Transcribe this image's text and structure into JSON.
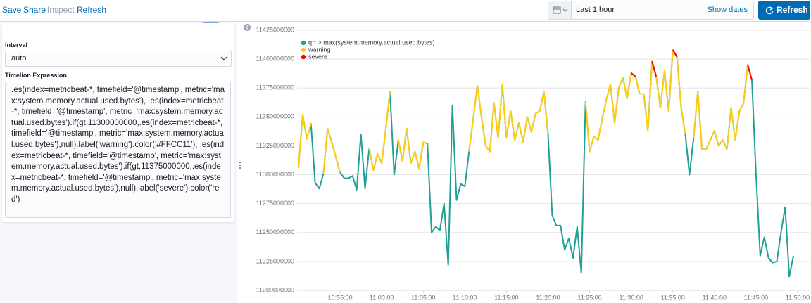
{
  "toolbar": {
    "links": [
      "Save",
      "Share",
      "Inspect",
      "Refresh"
    ]
  },
  "time_picker": {
    "range": "Last 1 hour",
    "show_dates": "Show dates",
    "button": "Refresh"
  },
  "editor": {
    "interval_label": "Interval",
    "interval_value": "auto",
    "expression_label": "Timelion Expression",
    "expression": ".es(index=metricbeat-*, timefield='@timestamp', metric='max:system.memory.actual.used.bytes'), .es(index=metricbeat-*, timefield='@timestamp', metric='max:system.memory.actual.used.bytes').if(gt,11300000000,.es(index=metricbeat-*, timefield='@timestamp', metric='max:system.memory.actual.used.bytes'),null).label('warning').color('#FFCC11'), .es(index=metricbeat-*, timefield='@timestamp', metric='max:system.memory.actual.used.bytes').if(gt,11375000000,.es(index=metricbeat-*, timefield='@timestamp', metric='max:system.memory.actual.used.bytes'),null).label('severe').color('red')"
  },
  "chart_data": {
    "type": "line",
    "grid": true,
    "legend": "top-left",
    "x": [
      "10:50:00",
      "10:50:30",
      "10:51:00",
      "10:51:30",
      "10:52:00",
      "10:52:30",
      "10:53:00",
      "10:53:30",
      "10:54:00",
      "10:54:30",
      "10:55:00",
      "10:55:30",
      "10:56:00",
      "10:56:30",
      "10:57:00",
      "10:57:30",
      "10:58:00",
      "10:58:30",
      "10:59:00",
      "10:59:30",
      "11:00:00",
      "11:00:30",
      "11:01:00",
      "11:01:30",
      "11:02:00",
      "11:02:30",
      "11:03:00",
      "11:03:30",
      "11:04:00",
      "11:04:30",
      "11:05:00",
      "11:05:30",
      "11:06:00",
      "11:06:30",
      "11:07:00",
      "11:07:30",
      "11:08:00",
      "11:08:30",
      "11:09:00",
      "11:09:30",
      "11:10:00",
      "11:10:30",
      "11:11:00",
      "11:11:30",
      "11:12:00",
      "11:12:30",
      "11:13:00",
      "11:13:30",
      "11:14:00",
      "11:14:30",
      "11:15:00",
      "11:15:30",
      "11:16:00",
      "11:16:30",
      "11:17:00",
      "11:17:30",
      "11:18:00",
      "11:18:30",
      "11:19:00",
      "11:19:30",
      "11:20:00",
      "11:20:30",
      "11:21:00",
      "11:21:30",
      "11:22:00",
      "11:22:30",
      "11:23:00",
      "11:23:30",
      "11:24:00",
      "11:24:30",
      "11:25:00",
      "11:25:30",
      "11:26:00",
      "11:26:30",
      "11:27:00",
      "11:27:30",
      "11:28:00",
      "11:28:30",
      "11:29:00",
      "11:29:30",
      "11:30:00",
      "11:30:30",
      "11:31:00",
      "11:31:30",
      "11:32:00",
      "11:32:30",
      "11:33:00",
      "11:33:30",
      "11:34:00",
      "11:34:30",
      "11:35:00",
      "11:35:30",
      "11:36:00",
      "11:36:30",
      "11:37:00",
      "11:37:30",
      "11:38:00",
      "11:38:30",
      "11:39:00",
      "11:39:30",
      "11:40:00",
      "11:40:30",
      "11:41:00",
      "11:41:30",
      "11:42:00",
      "11:42:30",
      "11:43:00",
      "11:43:30",
      "11:44:00",
      "11:44:30",
      "11:45:00",
      "11:45:30",
      "11:46:00",
      "11:46:30",
      "11:47:00",
      "11:47:30",
      "11:48:00",
      "11:48:30",
      "11:49:00",
      "11:49:30"
    ],
    "series": [
      {
        "name": "q:* > max(system.memory.actual.used.bytes)",
        "color": "#1fa097",
        "values": [
          11306000000,
          11352000000,
          11331000000,
          11344000000,
          11293000000,
          11288000000,
          11301000000,
          11340000000,
          11328000000,
          11315000000,
          11302000000,
          11297000000,
          11297000000,
          11299000000,
          11287000000,
          11335000000,
          11288000000,
          11323000000,
          11304000000,
          11318000000,
          11310000000,
          11340000000,
          11372000000,
          11300000000,
          11330000000,
          11312000000,
          11340000000,
          11310000000,
          11320000000,
          11305000000,
          11328000000,
          11327000000,
          11250000000,
          11255000000,
          11252000000,
          11275000000,
          11222000000,
          11360000000,
          11278000000,
          11292000000,
          11290000000,
          11320000000,
          11348000000,
          11377000000,
          11350000000,
          11325000000,
          11320000000,
          11362000000,
          11332000000,
          11378000000,
          11332000000,
          11355000000,
          11330000000,
          11345000000,
          11328000000,
          11350000000,
          11337000000,
          11353000000,
          11355000000,
          11372000000,
          11335000000,
          11265000000,
          11256000000,
          11256000000,
          11235000000,
          11245000000,
          11228000000,
          11255000000,
          11215000000,
          11363000000,
          11320000000,
          11333000000,
          11330000000,
          11348000000,
          11365000000,
          11378000000,
          11345000000,
          11375000000,
          11384000000,
          11366000000,
          11388000000,
          11385000000,
          11370000000,
          11370000000,
          11338000000,
          11398000000,
          11385000000,
          11358000000,
          11390000000,
          11355000000,
          11408000000,
          11402000000,
          11358000000,
          11335000000,
          11300000000,
          11332000000,
          11372000000,
          11322000000,
          11322000000,
          11330000000,
          11338000000,
          11325000000,
          11330000000,
          11322000000,
          11358000000,
          11330000000,
          11355000000,
          11362000000,
          11395000000,
          11382000000,
          11300000000,
          11230000000,
          11246000000,
          11228000000,
          11224000000,
          11225000000,
          11250000000,
          11272000000,
          11212000000,
          11230000000
        ]
      },
      {
        "name": "warning",
        "color": "#FFCC11",
        "values": [
          11306000000,
          11352000000,
          11331000000,
          11344000000,
          null,
          null,
          11301000000,
          11340000000,
          11328000000,
          11315000000,
          11302000000,
          null,
          null,
          null,
          null,
          11335000000,
          null,
          11323000000,
          11304000000,
          11318000000,
          11310000000,
          11340000000,
          11372000000,
          null,
          11330000000,
          11312000000,
          11340000000,
          11310000000,
          11320000000,
          11305000000,
          11328000000,
          11327000000,
          null,
          null,
          null,
          null,
          null,
          11360000000,
          null,
          null,
          null,
          11320000000,
          11348000000,
          11377000000,
          11350000000,
          11325000000,
          11320000000,
          11362000000,
          11332000000,
          11378000000,
          11332000000,
          11355000000,
          11330000000,
          11345000000,
          11328000000,
          11350000000,
          11337000000,
          11353000000,
          11355000000,
          11372000000,
          11335000000,
          null,
          null,
          null,
          null,
          null,
          null,
          null,
          null,
          11363000000,
          11320000000,
          11333000000,
          11330000000,
          11348000000,
          11365000000,
          11378000000,
          11345000000,
          11375000000,
          11384000000,
          11366000000,
          11388000000,
          11385000000,
          11370000000,
          11370000000,
          11338000000,
          11398000000,
          11385000000,
          11358000000,
          11390000000,
          11355000000,
          11408000000,
          11402000000,
          11358000000,
          11335000000,
          null,
          11332000000,
          11372000000,
          11322000000,
          11322000000,
          11330000000,
          11338000000,
          11325000000,
          11330000000,
          11322000000,
          11358000000,
          11330000000,
          11355000000,
          11362000000,
          11395000000,
          11382000000,
          null,
          null,
          null,
          null,
          null,
          null,
          null,
          null,
          null,
          null
        ]
      },
      {
        "name": "severe",
        "color": "red",
        "values": [
          null,
          null,
          null,
          null,
          null,
          null,
          null,
          null,
          null,
          null,
          null,
          null,
          null,
          null,
          null,
          null,
          null,
          null,
          null,
          null,
          null,
          null,
          null,
          null,
          null,
          null,
          null,
          null,
          null,
          null,
          null,
          null,
          null,
          null,
          null,
          null,
          null,
          null,
          null,
          null,
          null,
          null,
          null,
          11377000000,
          null,
          null,
          null,
          null,
          null,
          11378000000,
          null,
          null,
          null,
          null,
          null,
          null,
          null,
          null,
          null,
          null,
          null,
          null,
          null,
          null,
          null,
          null,
          null,
          null,
          null,
          null,
          null,
          null,
          null,
          null,
          null,
          11378000000,
          null,
          null,
          11384000000,
          null,
          11388000000,
          11385000000,
          null,
          null,
          null,
          11398000000,
          11385000000,
          null,
          11390000000,
          null,
          11408000000,
          11402000000,
          null,
          null,
          null,
          null,
          null,
          null,
          null,
          null,
          null,
          null,
          null,
          null,
          null,
          null,
          null,
          null,
          11395000000,
          11382000000,
          null,
          null,
          null,
          null,
          null,
          null,
          null,
          null,
          null,
          null
        ]
      }
    ],
    "xlim": [
      "10:50:00",
      "11:50:00"
    ],
    "xticks": [
      "10:55:00",
      "11:00:00",
      "11:05:00",
      "11:10:00",
      "11:15:00",
      "11:20:00",
      "11:25:00",
      "11:30:00",
      "11:35:00",
      "11:40:00",
      "11:45:00",
      "11:50:00"
    ],
    "ylim": [
      11200000000,
      11425000000
    ],
    "yticks": [
      11200000000,
      11225000000,
      11250000000,
      11275000000,
      11300000000,
      11325000000,
      11350000000,
      11375000000,
      11400000000,
      11425000000
    ]
  }
}
